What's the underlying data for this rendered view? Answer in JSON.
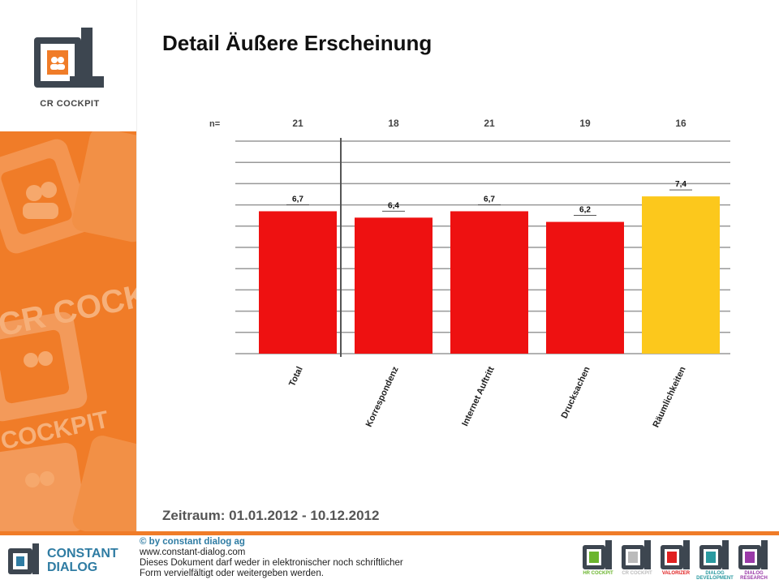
{
  "header": {
    "title": "Detail Äußere Erscheinung",
    "logo_text": "CR COCKPIT",
    "watermark_1": "CR COCKPIT",
    "watermark_2": "COCKPIT"
  },
  "colors": {
    "brand_orange": "#f07c28",
    "brand_dark": "#3d4650",
    "bar_red": "#ee1111",
    "bar_yellow": "#fcc81c",
    "brand_blue": "#2f7ca3"
  },
  "chart_data": {
    "type": "bar",
    "n_label": "n=",
    "categories": [
      "Total",
      "Korrespondenz",
      "Internet Auftritt",
      "Drucksachen",
      "Räumlichkeiten"
    ],
    "n_values": [
      "21",
      "18",
      "21",
      "19",
      "16"
    ],
    "values": [
      6.7,
      6.4,
      6.7,
      6.2,
      7.4
    ],
    "value_labels": [
      "6,7",
      "6,4",
      "6,7",
      "6,2",
      "7,4"
    ],
    "bar_colors": [
      "#ee1111",
      "#ee1111",
      "#ee1111",
      "#ee1111",
      "#fcc81c"
    ],
    "ylim": [
      0,
      10
    ],
    "grid": true,
    "separator_after_first": true
  },
  "period": {
    "label": "Zeitraum: 01.01.2012 - 10.12.2012"
  },
  "footer": {
    "brand_line1": "CONSTANT",
    "brand_line2": "DIALOG",
    "copyright": "© by constant dialog ag",
    "url": "www.constant-dialog.com",
    "notice_line1": "Dieses Dokument darf weder in elektronischer noch schriftlicher",
    "notice_line2": "Form vervielfältigt oder weitergeben werden.",
    "products": [
      {
        "label": "HR COCKPIT",
        "color": "#6bb52e"
      },
      {
        "label": "CR COCKPIT",
        "color": "#bbbbbb"
      },
      {
        "label": "VALORIZER",
        "color": "#e02020"
      },
      {
        "label": "DIALOG DEVELOPMENT",
        "color": "#2a9aa0"
      },
      {
        "label": "DIALOG RESEARCH",
        "color": "#9a3aa8"
      }
    ]
  }
}
